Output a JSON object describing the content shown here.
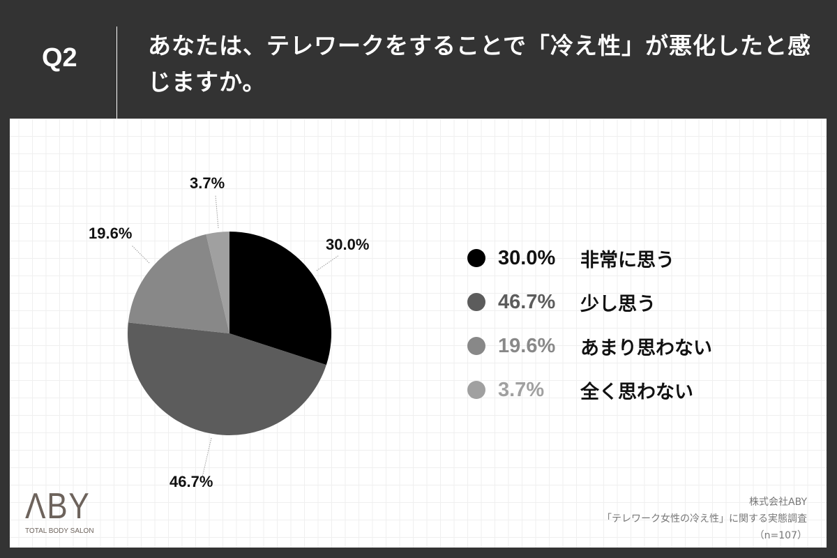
{
  "header": {
    "question_number": "Q2",
    "question_text": "あなたは、テレワークをすることで「冷え性」が悪化したと感じますか。"
  },
  "chart_data": {
    "type": "pie",
    "title": "あなたは、テレワークをすることで「冷え性」が悪化したと感じますか。",
    "categories": [
      "非常に思う",
      "少し思う",
      "あまり思わない",
      "全く思わない"
    ],
    "values": [
      30.0,
      46.7,
      19.6,
      3.7
    ],
    "unit": "%",
    "colors": [
      "#000000",
      "#5c5c5c",
      "#888888",
      "#a0a0a0"
    ],
    "start_angle": "12 o'clock, clockwise",
    "legend_position": "right",
    "n": 107
  },
  "pie_labels": [
    {
      "text": "30.0%"
    },
    {
      "text": "46.7%"
    },
    {
      "text": "19.6%"
    },
    {
      "text": "3.7%"
    }
  ],
  "legend": [
    {
      "pct": "30.0%",
      "label": "非常に思う",
      "color": "#000000"
    },
    {
      "pct": "46.7%",
      "label": "少し思う",
      "color": "#5c5c5c"
    },
    {
      "pct": "19.6%",
      "label": "あまり思わない",
      "color": "#888888"
    },
    {
      "pct": "3.7%",
      "label": "全く思わない",
      "color": "#a0a0a0"
    }
  ],
  "logo": {
    "mark": "ΛBY",
    "subtitle": "TOTAL BODY SALON"
  },
  "source": {
    "company": "株式会社ABY",
    "survey": "「テレワーク女性の冷え性」に関する実態調査",
    "sample": "（n=107）"
  }
}
